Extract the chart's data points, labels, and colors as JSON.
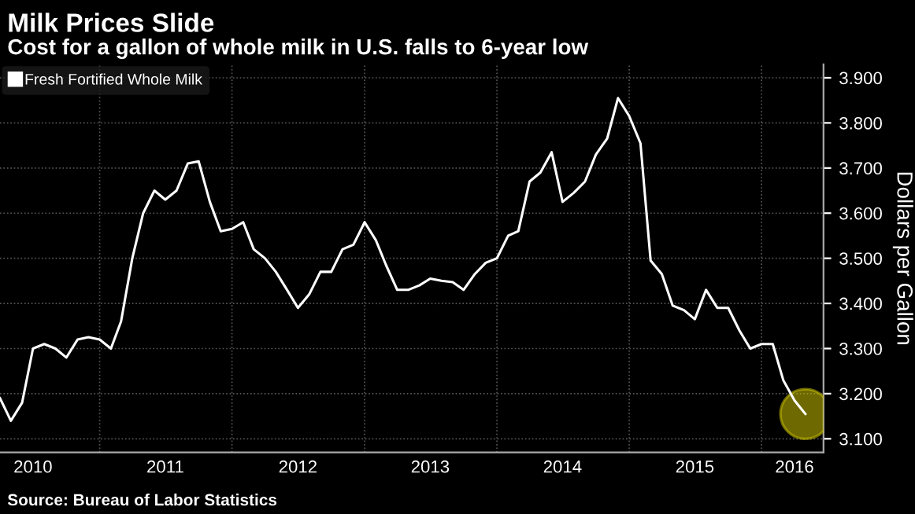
{
  "chart_data": {
    "type": "line",
    "title": "Milk Prices Slide",
    "subtitle": "Cost for a gallon of whole milk in U.S. falls to 6-year low",
    "ylabel": "Dollars per Gallon",
    "annotations": [
      "Source: Bureau of Labor Statistics"
    ],
    "x": [
      "2010-04",
      "2010-05",
      "2010-06",
      "2010-07",
      "2010-08",
      "2010-09",
      "2010-10",
      "2010-11",
      "2010-12",
      "2011-01",
      "2011-02",
      "2011-03",
      "2011-04",
      "2011-05",
      "2011-06",
      "2011-07",
      "2011-08",
      "2011-09",
      "2011-10",
      "2011-11",
      "2011-12",
      "2012-01",
      "2012-02",
      "2012-03",
      "2012-04",
      "2012-05",
      "2012-06",
      "2012-07",
      "2012-08",
      "2012-09",
      "2012-10",
      "2012-11",
      "2012-12",
      "2013-01",
      "2013-02",
      "2013-03",
      "2013-04",
      "2013-05",
      "2013-06",
      "2013-07",
      "2013-08",
      "2013-09",
      "2013-10",
      "2013-11",
      "2013-12",
      "2014-01",
      "2014-02",
      "2014-03",
      "2014-04",
      "2014-05",
      "2014-06",
      "2014-07",
      "2014-08",
      "2014-09",
      "2014-10",
      "2014-11",
      "2014-12",
      "2015-01",
      "2015-02",
      "2015-03",
      "2015-04",
      "2015-05",
      "2015-06",
      "2015-07",
      "2015-08",
      "2015-09",
      "2015-10",
      "2015-11",
      "2015-12",
      "2016-01",
      "2016-02",
      "2016-03",
      "2016-04",
      "2016-05"
    ],
    "series": [
      {
        "name": "Fresh Fortified Whole Milk",
        "color": "#ffffff",
        "values": [
          3.19,
          3.14,
          3.18,
          3.3,
          3.31,
          3.3,
          3.28,
          3.32,
          3.325,
          3.32,
          3.3,
          3.36,
          3.5,
          3.6,
          3.65,
          3.63,
          3.65,
          3.71,
          3.715,
          3.625,
          3.56,
          3.565,
          3.58,
          3.52,
          3.5,
          3.47,
          3.43,
          3.39,
          3.42,
          3.47,
          3.47,
          3.52,
          3.53,
          3.58,
          3.54,
          3.485,
          3.43,
          3.43,
          3.44,
          3.455,
          3.45,
          3.447,
          3.43,
          3.465,
          3.49,
          3.5,
          3.55,
          3.56,
          3.67,
          3.69,
          3.735,
          3.625,
          3.645,
          3.67,
          3.73,
          3.765,
          3.855,
          3.815,
          3.755,
          3.495,
          3.465,
          3.395,
          3.385,
          3.365,
          3.43,
          3.39,
          3.39,
          3.34,
          3.3,
          3.31,
          3.31,
          3.23,
          3.185,
          3.155
        ]
      },
      {
        "color": "#c8c000",
        "type": "scatter",
        "marker": "circle",
        "x": [
          "2016-05"
        ],
        "values": [
          3.155
        ]
      }
    ],
    "xlim": [
      "2010-04-01",
      "2016-06-20"
    ],
    "xticks": [
      {
        "value": "2010-07-01",
        "label": "2010"
      },
      {
        "value": "2011-01-01",
        "label": null
      },
      {
        "value": "2011-07-01",
        "label": "2011"
      },
      {
        "value": "2012-01-01",
        "label": null
      },
      {
        "value": "2012-07-01",
        "label": "2012"
      },
      {
        "value": "2013-01-01",
        "label": null
      },
      {
        "value": "2013-07-01",
        "label": "2013"
      },
      {
        "value": "2014-01-01",
        "label": null
      },
      {
        "value": "2014-07-01",
        "label": "2014"
      },
      {
        "value": "2015-01-01",
        "label": null
      },
      {
        "value": "2015-07-01",
        "label": "2015"
      },
      {
        "value": "2016-01-01",
        "label": null
      },
      {
        "value": "2016-04-01",
        "label": "2016"
      }
    ],
    "ylim": [
      3.07,
      3.93
    ],
    "yticks": [
      {
        "value": 3.1,
        "label": "3.100"
      },
      {
        "value": 3.2,
        "label": "3.200"
      },
      {
        "value": 3.3,
        "label": "3.300"
      },
      {
        "value": 3.4,
        "label": "3.400"
      },
      {
        "value": 3.5,
        "label": "3.500"
      },
      {
        "value": 3.6,
        "label": "3.600"
      },
      {
        "value": 3.7,
        "label": "3.700"
      },
      {
        "value": 3.8,
        "label": "3.800"
      },
      {
        "value": 3.9,
        "label": "3.900"
      }
    ],
    "grid": true,
    "legend": "top left",
    "marker": "none",
    "line_style": "solid"
  }
}
